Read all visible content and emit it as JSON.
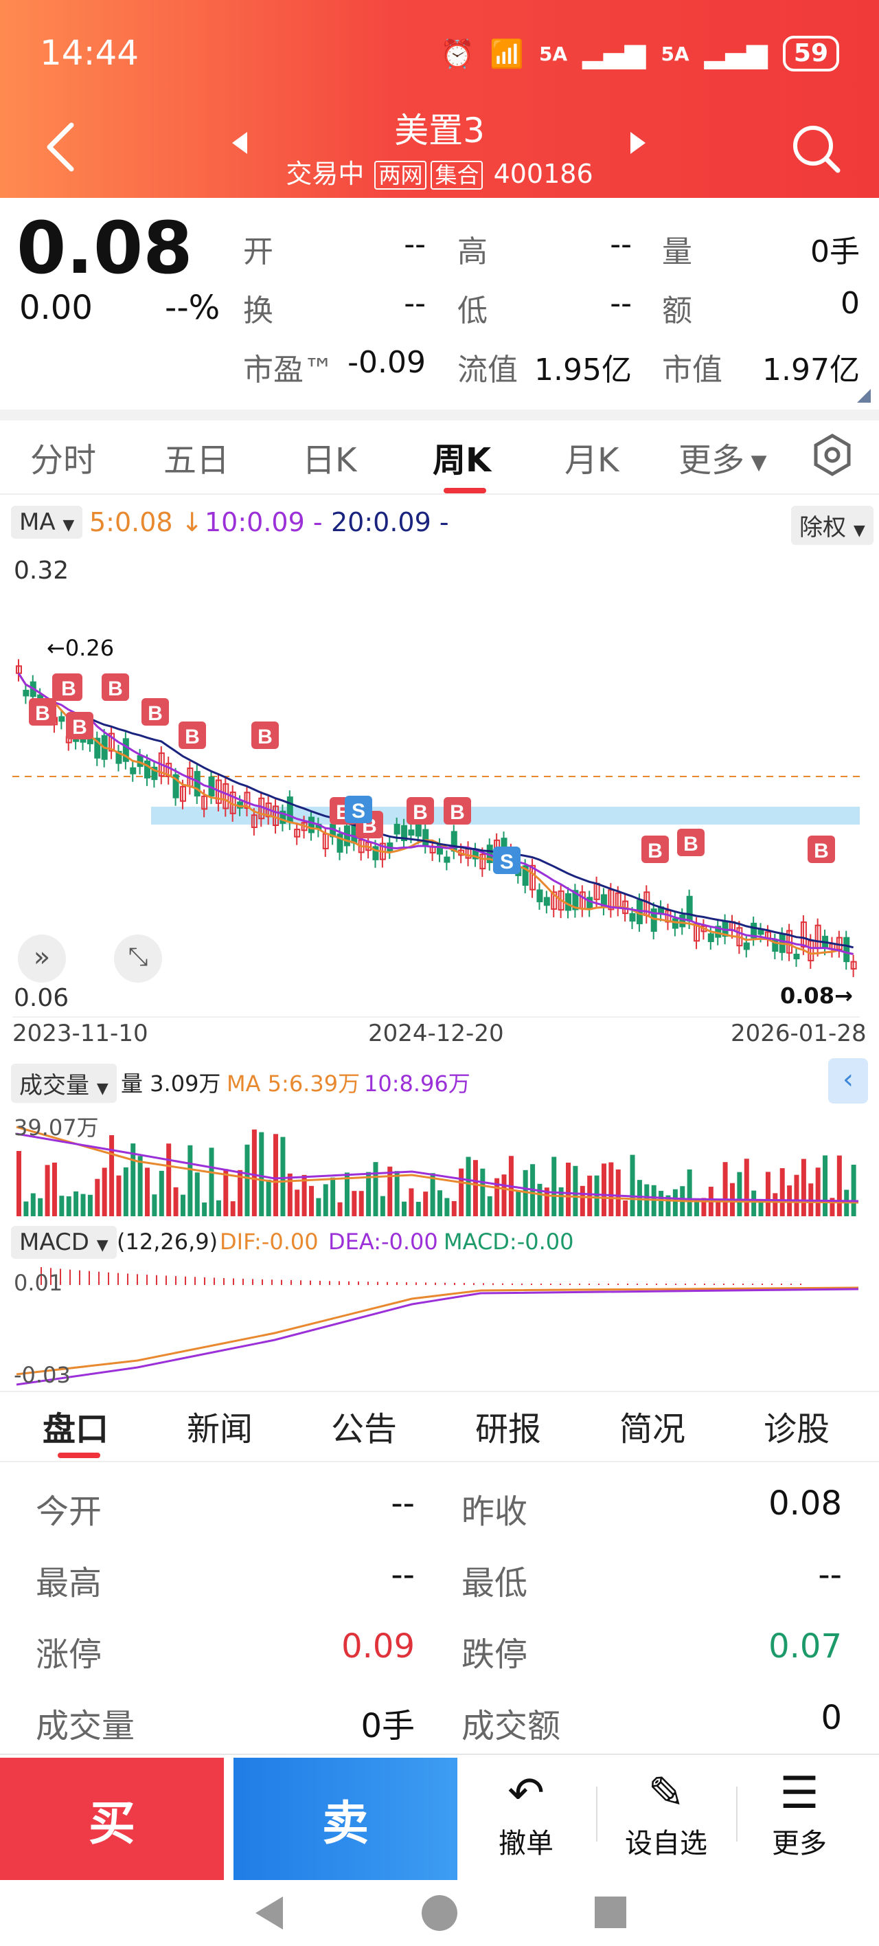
{
  "status": {
    "time": "14:44",
    "battery": "59",
    "signal1": "5A",
    "signal2": "5A"
  },
  "header": {
    "title": "美置3",
    "status": "交易中",
    "tag1": "两网",
    "tag2": "集合",
    "code": "400186"
  },
  "quote": {
    "price": "0.08",
    "change": "0.00",
    "change_pct": "--%",
    "fields": [
      {
        "label": "开",
        "value": "--"
      },
      {
        "label": "高",
        "value": "--"
      },
      {
        "label": "量",
        "value": "0手"
      },
      {
        "label": "换",
        "value": "--"
      },
      {
        "label": "低",
        "value": "--"
      },
      {
        "label": "额",
        "value": "0"
      },
      {
        "label": "市盈™",
        "value": "-0.09"
      },
      {
        "label": "流值",
        "value": "1.95亿"
      },
      {
        "label": "市值",
        "value": "1.97亿"
      }
    ]
  },
  "periods": [
    "分时",
    "五日",
    "日K",
    "周K",
    "月K",
    "更多"
  ],
  "active_period": "周K",
  "ma_legend": {
    "selector": "MA",
    "ma5": "5:0.08",
    "ma10": "10:0.09 -",
    "ma20": "20:0.09 -",
    "right_chip": "除权"
  },
  "kline": {
    "y_high": "0.32",
    "y_low": "0.06",
    "max_marker": "←0.26",
    "last_marker": "0.08→",
    "dates": [
      "2023-11-10",
      "2024-12-20",
      "2026-01-28"
    ],
    "buy_tag": "B",
    "sell_tag": "S"
  },
  "volume_legend": {
    "selector": "成交量",
    "vol": "量 3.09万",
    "ma5": "MA 5:6.39万",
    "ma10": "10:8.96万",
    "axis": "39.07万"
  },
  "macd_legend": {
    "selector": "MACD",
    "params": "(12,26,9)",
    "dif": "DIF:-0.00",
    "dea": "DEA:-0.00",
    "macd": "MACD:-0.00",
    "top": "0.01",
    "bottom": "-0.03"
  },
  "info_tabs": [
    "盘口",
    "新闻",
    "公告",
    "研报",
    "简况",
    "诊股"
  ],
  "info": {
    "rows": [
      [
        {
          "label": "今开",
          "value": "--"
        },
        {
          "label": "昨收",
          "value": "0.08"
        }
      ],
      [
        {
          "label": "最高",
          "value": "--"
        },
        {
          "label": "最低",
          "value": "--"
        }
      ],
      [
        {
          "label": "涨停",
          "value": "0.09"
        },
        {
          "label": "跌停",
          "value": "0.07"
        }
      ],
      [
        {
          "label": "成交量",
          "value": "0手"
        },
        {
          "label": "成交额",
          "value": "0"
        }
      ]
    ]
  },
  "bottom": {
    "buy": "买",
    "sell": "卖",
    "cancel": "撤单",
    "watch": "设自选",
    "more": "更多"
  },
  "colors": {
    "up": "#e0323a",
    "down": "#1c9a6a",
    "ma5": "#e8892f",
    "ma10": "#9b30d9",
    "ma20": "#1a237e",
    "accent": "#f0333a"
  }
}
